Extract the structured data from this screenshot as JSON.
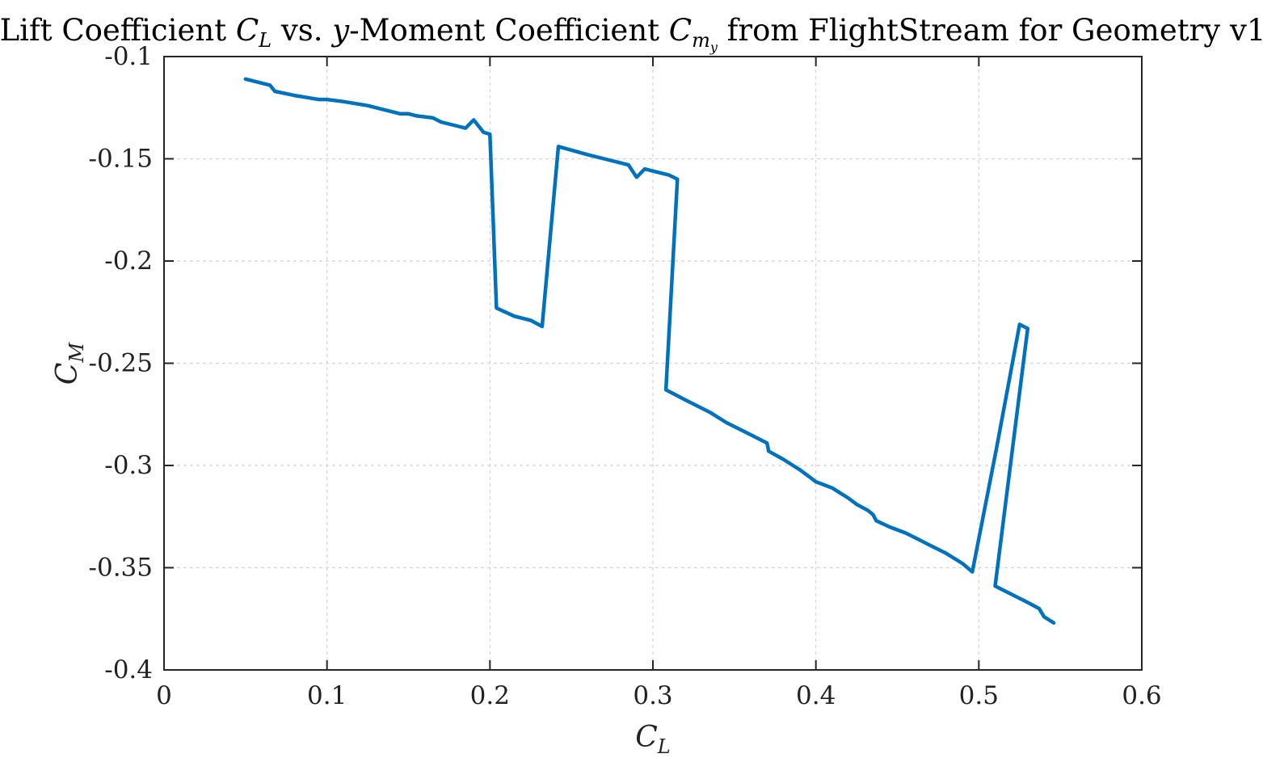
{
  "chart_data": {
    "type": "line",
    "title": {
      "prefix": "Lift Coefficient ",
      "cl_var": "C",
      "cl_sub": "L",
      "mid": " vs. ",
      "y_var": "y",
      "mid2": "-Moment Coefficient ",
      "cm_var": "C",
      "cm_sub": "m",
      "cm_subsub": "y",
      "suffix": " from FlightStream for Geometry v1"
    },
    "xlabel": {
      "var": "C",
      "sub": "L"
    },
    "ylabel": {
      "var": "C",
      "sub": "M"
    },
    "xlim": [
      0,
      0.6
    ],
    "ylim": [
      -0.4,
      -0.1
    ],
    "xticks": [
      0,
      0.1,
      0.2,
      0.3,
      0.4,
      0.5,
      0.6
    ],
    "xtick_labels": [
      "0",
      "0.1",
      "0.2",
      "0.3",
      "0.4",
      "0.5",
      "0.6"
    ],
    "yticks": [
      -0.4,
      -0.35,
      -0.3,
      -0.25,
      -0.2,
      -0.15,
      -0.1
    ],
    "ytick_labels": [
      "-0.4",
      "-0.35",
      "-0.3",
      "-0.25",
      "-0.2",
      "-0.15",
      "-0.1"
    ],
    "grid": true,
    "series": [
      {
        "color": "#0072bd",
        "x": [
          0.05,
          0.065,
          0.068,
          0.08,
          0.095,
          0.1,
          0.11,
          0.125,
          0.135,
          0.145,
          0.15,
          0.155,
          0.165,
          0.17,
          0.18,
          0.185,
          0.19,
          0.196,
          0.2,
          0.204,
          0.215,
          0.225,
          0.232,
          0.242,
          0.26,
          0.275,
          0.285,
          0.29,
          0.295,
          0.3,
          0.31,
          0.315,
          0.308,
          0.32,
          0.335,
          0.345,
          0.36,
          0.37,
          0.371,
          0.38,
          0.39,
          0.395,
          0.4,
          0.41,
          0.42,
          0.425,
          0.432,
          0.435,
          0.437,
          0.445,
          0.455,
          0.46,
          0.465,
          0.47,
          0.48,
          0.49,
          0.496,
          0.511,
          0.525,
          0.53,
          0.51,
          0.52,
          0.53,
          0.537,
          0.54,
          0.546
        ],
        "y": [
          -0.111,
          -0.114,
          -0.117,
          -0.119,
          -0.121,
          -0.121,
          -0.122,
          -0.124,
          -0.126,
          -0.128,
          -0.128,
          -0.129,
          -0.13,
          -0.132,
          -0.134,
          -0.135,
          -0.131,
          -0.137,
          -0.138,
          -0.223,
          -0.227,
          -0.229,
          -0.232,
          -0.144,
          -0.148,
          -0.151,
          -0.153,
          -0.159,
          -0.155,
          -0.156,
          -0.158,
          -0.16,
          -0.263,
          -0.268,
          -0.274,
          -0.279,
          -0.285,
          -0.289,
          -0.293,
          -0.297,
          -0.302,
          -0.305,
          -0.308,
          -0.311,
          -0.316,
          -0.319,
          -0.322,
          -0.324,
          -0.327,
          -0.33,
          -0.333,
          -0.335,
          -0.337,
          -0.339,
          -0.343,
          -0.348,
          -0.352,
          -0.291,
          -0.231,
          -0.233,
          -0.359,
          -0.363,
          -0.367,
          -0.37,
          -0.374,
          -0.377
        ]
      }
    ]
  }
}
